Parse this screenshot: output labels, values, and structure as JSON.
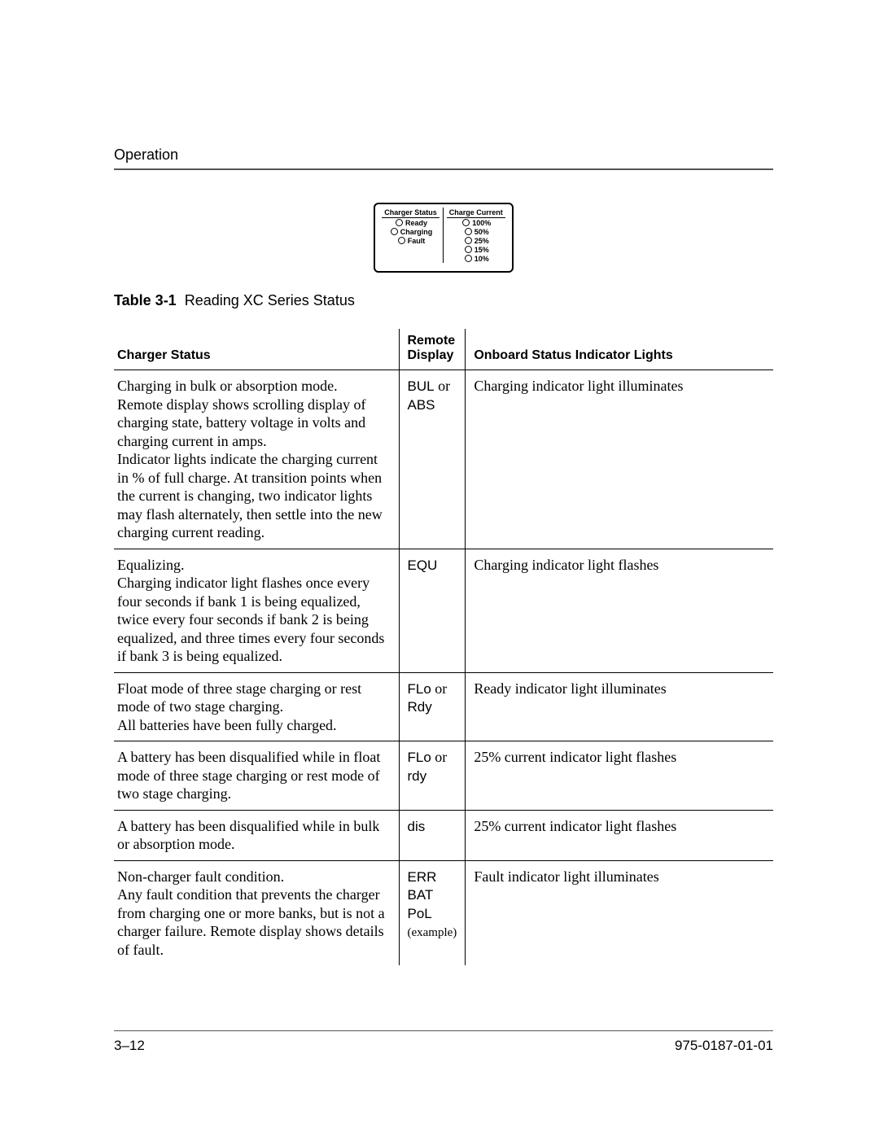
{
  "section": "Operation",
  "panel": {
    "left": {
      "title": "Charger Status",
      "items": [
        "Ready",
        "Charging",
        "Fault"
      ]
    },
    "right": {
      "title": "Charge Current",
      "items": [
        "100%",
        "50%",
        "25%",
        "15%",
        "10%"
      ]
    }
  },
  "caption": {
    "label": "Table 3-1",
    "text": "Reading XC Series Status"
  },
  "headers": {
    "status": "Charger Status",
    "remote": "Remote Display",
    "onboard": "Onboard Status Indicator Lights"
  },
  "rows": [
    {
      "status": "Charging in bulk or absorption mode.\nRemote display shows scrolling display of charging state, battery voltage in volts and charging current in amps.\nIndicator lights indicate the charging current in % of full charge. At transition points when the current is changing, two indicator lights may flash alternately, then settle into the new charging current reading.",
      "remote_a": "BUL",
      "remote_join": " or ",
      "remote_b": "ABS",
      "onboard": "Charging indicator light illuminates"
    },
    {
      "status": "Equalizing.\nCharging indicator light flashes once every four seconds if bank 1 is being equalized, twice every four seconds if bank 2 is being equalized, and three times every four seconds if bank 3 is being equalized.",
      "remote_a": "EQU",
      "remote_join": "",
      "remote_b": "",
      "onboard": "Charging indicator light flashes"
    },
    {
      "status": "Float mode of three stage charging or rest mode of two stage charging.\nAll batteries have been fully charged.",
      "remote_a": "FLo",
      "remote_join": " or ",
      "remote_b": "Rdy",
      "onboard": "Ready indicator light illuminates"
    },
    {
      "status": "A battery has been disqualified while in float mode of three stage charging or rest mode of two stage charging.",
      "remote_a": "FLo",
      "remote_join": " or ",
      "remote_b": "rdy",
      "onboard": "25% current indicator light flashes"
    },
    {
      "status": "A battery has been disqualified while in bulk or absorption mode.",
      "remote_a": "dis",
      "remote_join": "",
      "remote_b": "",
      "onboard": "25% current indicator light flashes"
    },
    {
      "status": "Non-charger fault condition.\nAny fault condition that prevents the charger from charging one or more banks, but is not a charger failure. Remote display shows details of fault.",
      "remote_a": "ERR",
      "remote_b": "BAT",
      "remote_c": "PoL",
      "remote_note": "(example)",
      "onboard": "Fault indicator light illuminates"
    }
  ],
  "footer": {
    "left": "3–12",
    "right": "975-0187-01-01"
  }
}
